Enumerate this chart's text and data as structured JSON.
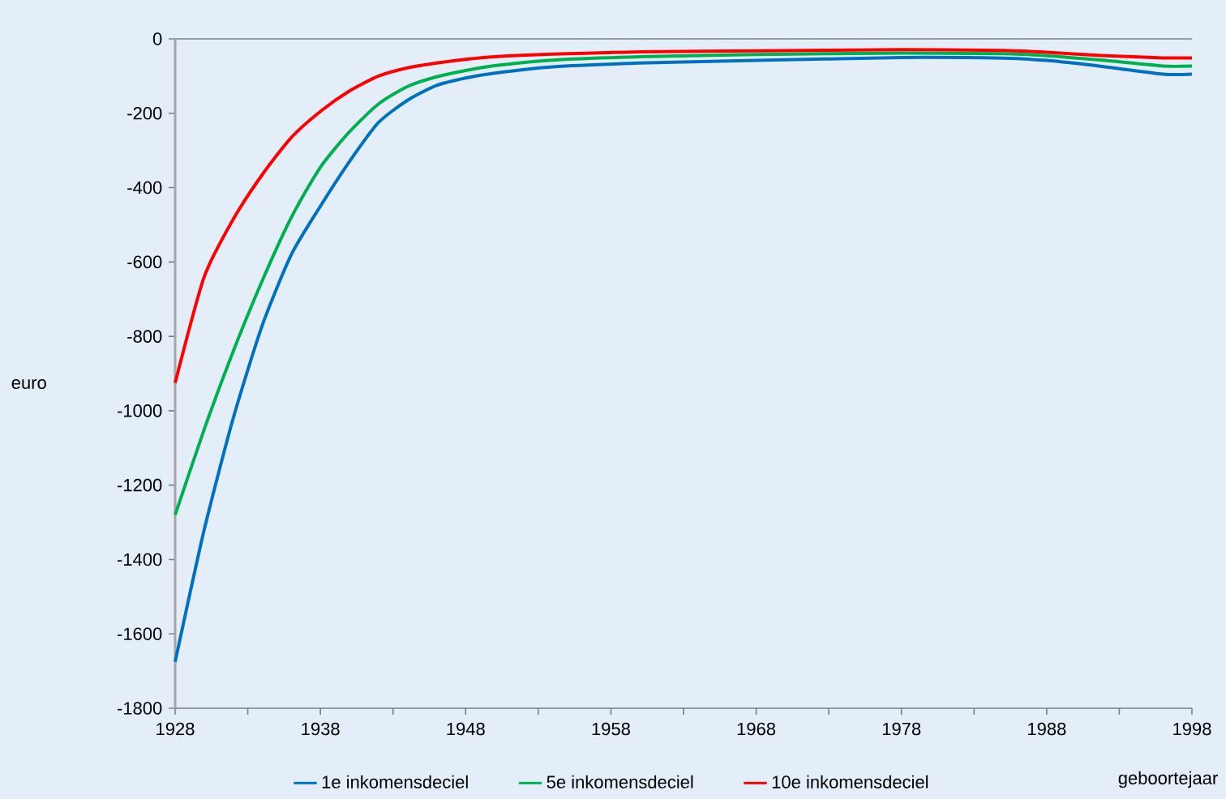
{
  "chart_data": {
    "type": "line",
    "xlabel": "geboortejaar",
    "ylabel": "euro",
    "xlim": [
      1928,
      1998
    ],
    "xticks": [
      1928,
      {
        "value": 1933,
        "label": null
      },
      1938,
      {
        "value": 1943,
        "label": null
      },
      1948,
      {
        "value": 1953,
        "label": null
      },
      1958,
      {
        "value": 1963,
        "label": null
      },
      1968,
      {
        "value": 1973,
        "label": null
      },
      1978,
      {
        "value": 1983,
        "label": null
      },
      1988,
      {
        "value": 1993,
        "label": null
      },
      1998
    ],
    "ylim": [
      -1800,
      0
    ],
    "yticks": [
      -1800,
      -1600,
      -1400,
      -1200,
      -1000,
      -800,
      -600,
      -400,
      -200,
      0
    ],
    "grid": false,
    "legend": "bottom",
    "marker": "none",
    "line_style": "solid",
    "x": [
      1928,
      1930,
      1932,
      1934,
      1936,
      1938,
      1940,
      1942,
      1944,
      1946,
      1948,
      1950,
      1954,
      1960,
      1968,
      1978,
      1985,
      1988,
      1992,
      1996,
      1998
    ],
    "series": [
      {
        "name": "1e inkomensdeciel",
        "color": "#0070c0",
        "values": [
          -1675,
          -1320,
          -1020,
          -770,
          -580,
          -450,
          -330,
          -225,
          -165,
          -125,
          -105,
          -92,
          -75,
          -65,
          -58,
          -50,
          -52,
          -58,
          -75,
          -95,
          -95
        ]
      },
      {
        "name": "5e inkomensdeciel",
        "color": "#00b050",
        "values": [
          -1280,
          -1050,
          -840,
          -650,
          -480,
          -345,
          -250,
          -175,
          -128,
          -102,
          -85,
          -72,
          -57,
          -48,
          -42,
          -38,
          -40,
          -45,
          -58,
          -73,
          -73
        ]
      },
      {
        "name": "10e inkomensdeciel",
        "color": "#ff0000",
        "values": [
          -925,
          -640,
          -485,
          -365,
          -265,
          -195,
          -140,
          -100,
          -78,
          -65,
          -55,
          -48,
          -41,
          -35,
          -32,
          -29,
          -31,
          -36,
          -45,
          -51,
          -51
        ]
      }
    ]
  }
}
